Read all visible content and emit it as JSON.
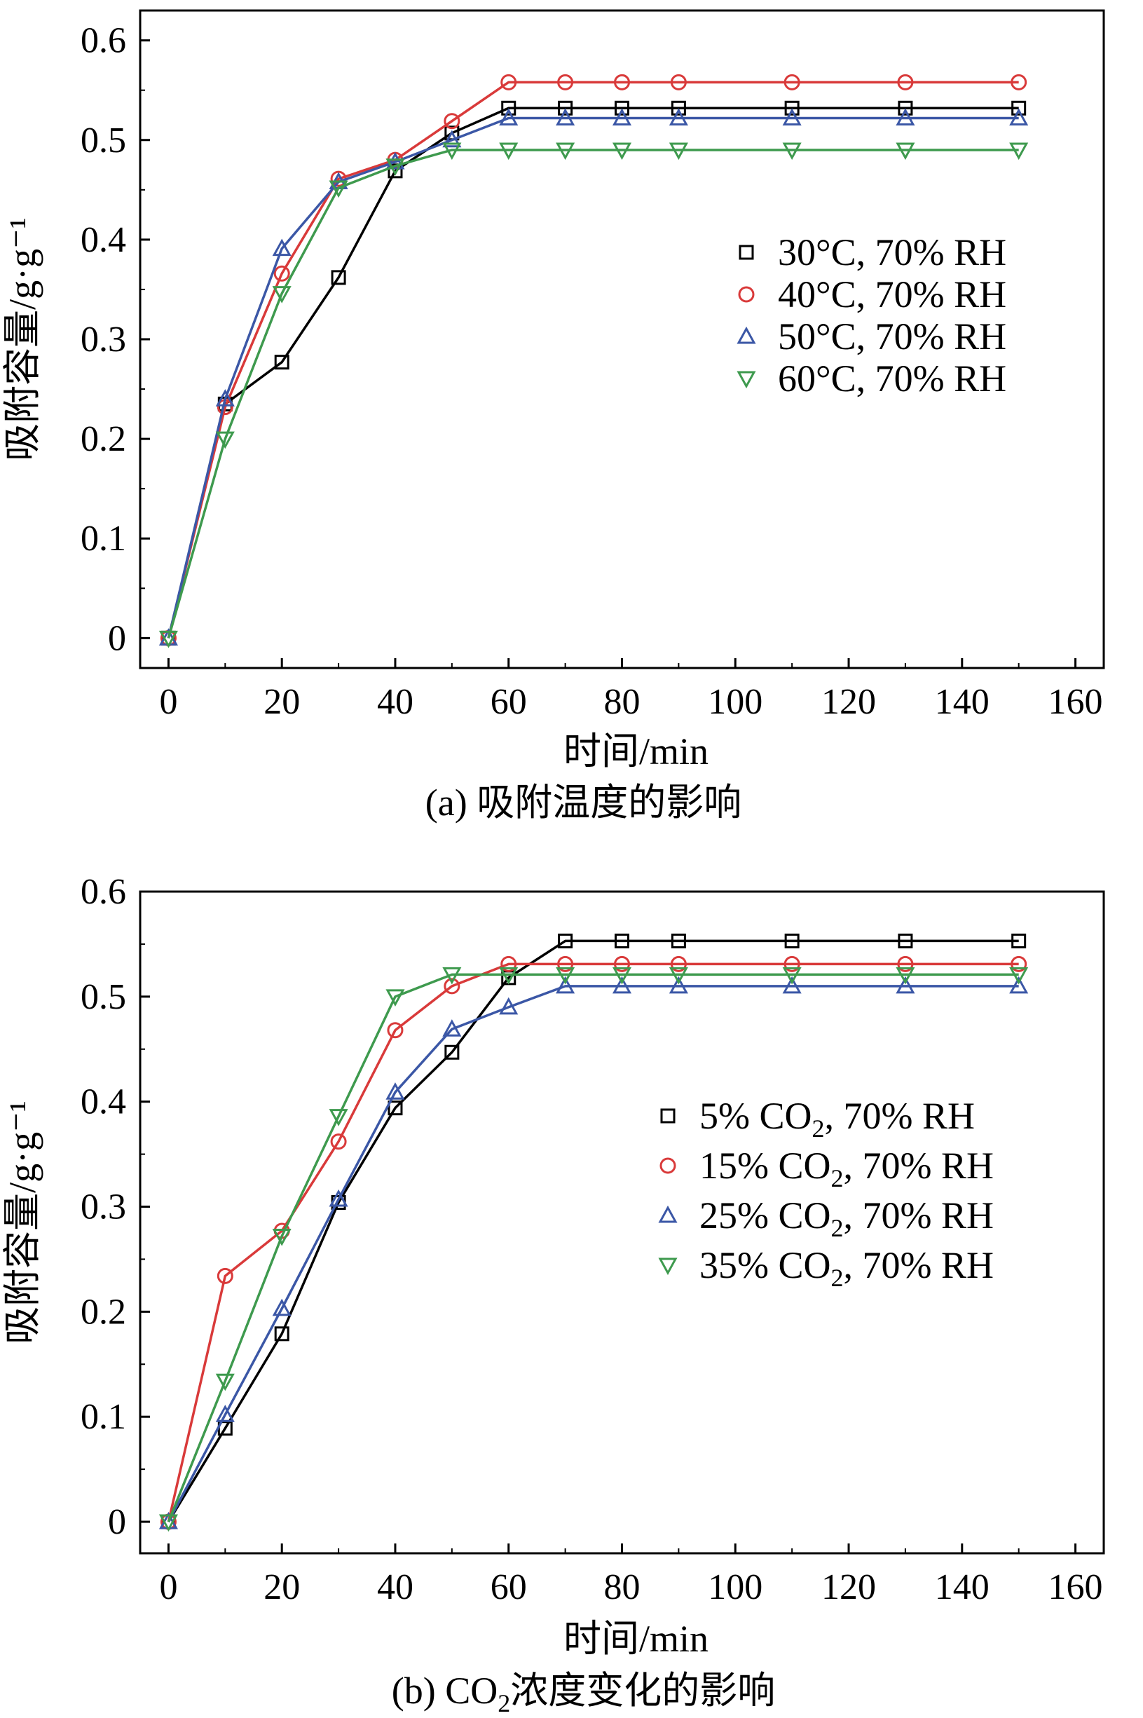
{
  "chart_data": [
    {
      "type": "line",
      "caption": "(a) 吸附温度的影响",
      "xlabel": "时间/min",
      "ylabel": "吸附容量/g·g⁻¹",
      "xlim": [
        -5,
        165
      ],
      "ylim": [
        -0.03,
        0.63
      ],
      "xticks": [
        0,
        20,
        40,
        60,
        80,
        100,
        120,
        140,
        160
      ],
      "yticks": [
        0,
        0.1,
        0.2,
        0.3,
        0.4,
        0.5,
        0.6
      ],
      "xtick_labels": [
        "0",
        "20",
        "40",
        "60",
        "80",
        "100",
        "120",
        "140",
        "160"
      ],
      "ytick_labels": [
        "0",
        "0.1",
        "0.2",
        "0.3",
        "0.4",
        "0.5",
        "0.6"
      ],
      "x": [
        0,
        10,
        20,
        30,
        40,
        50,
        60,
        70,
        80,
        90,
        110,
        130,
        150
      ],
      "legend_position": "right-middle",
      "series": [
        {
          "name": "30°C, 70% RH",
          "marker": "square",
          "color": "#000000",
          "values": [
            0,
            0.235,
            0.277,
            0.362,
            0.469,
            0.507,
            0.532,
            0.532,
            0.532,
            0.532,
            0.532,
            0.532,
            0.532
          ]
        },
        {
          "name": "40°C, 70% RH",
          "marker": "circle",
          "color": "#d93a3a",
          "values": [
            0,
            0.232,
            0.366,
            0.461,
            0.48,
            0.519,
            0.558,
            0.558,
            0.558,
            0.558,
            0.558,
            0.558,
            0.558
          ]
        },
        {
          "name": "50°C, 70% RH",
          "marker": "triangle-up",
          "color": "#3b57a6",
          "values": [
            0,
            0.24,
            0.391,
            0.458,
            0.478,
            0.5,
            0.522,
            0.522,
            0.522,
            0.522,
            0.522,
            0.522,
            0.522
          ]
        },
        {
          "name": "60°C, 70% RH",
          "marker": "triangle-down",
          "color": "#3e9a4e",
          "values": [
            0,
            0.2,
            0.346,
            0.452,
            0.474,
            0.49,
            0.49,
            0.49,
            0.49,
            0.49,
            0.49,
            0.49,
            0.49
          ]
        }
      ]
    },
    {
      "type": "line",
      "caption_parts": [
        "(b) CO",
        "2",
        "浓度变化的影响"
      ],
      "xlabel": "时间/min",
      "ylabel": "吸附容量/g·g⁻¹",
      "xlim": [
        -5,
        165
      ],
      "ylim": [
        -0.03,
        0.6
      ],
      "xticks": [
        0,
        20,
        40,
        60,
        80,
        100,
        120,
        140,
        160
      ],
      "yticks": [
        0,
        0.1,
        0.2,
        0.3,
        0.4,
        0.5,
        0.6
      ],
      "xtick_labels": [
        "0",
        "20",
        "40",
        "60",
        "80",
        "100",
        "120",
        "140",
        "160"
      ],
      "ytick_labels": [
        "0",
        "0.1",
        "0.2",
        "0.3",
        "0.4",
        "0.5",
        "0.6"
      ],
      "x": [
        0,
        10,
        20,
        30,
        40,
        50,
        60,
        70,
        80,
        90,
        110,
        130,
        150
      ],
      "legend_position": "right-middle",
      "series": [
        {
          "name": "5% CO2, 70% RH",
          "name_parts": [
            "5% CO",
            "2",
            ", 70% RH"
          ],
          "marker": "square",
          "color": "#000000",
          "values": [
            0,
            0.089,
            0.179,
            0.304,
            0.394,
            0.447,
            0.518,
            0.553,
            0.553,
            0.553,
            0.553,
            0.553,
            0.553
          ]
        },
        {
          "name": "15% CO2, 70% RH",
          "name_parts": [
            "15% CO",
            "2",
            ", 70% RH"
          ],
          "marker": "circle",
          "color": "#d93a3a",
          "values": [
            0,
            0.234,
            0.277,
            0.362,
            0.468,
            0.51,
            0.531,
            0.531,
            0.531,
            0.531,
            0.531,
            0.531,
            0.531
          ]
        },
        {
          "name": "25% CO2, 70% RH",
          "name_parts": [
            "25% CO",
            "2",
            ", 70% RH"
          ],
          "marker": "triangle-up",
          "color": "#3b57a6",
          "values": [
            0,
            0.102,
            0.203,
            0.307,
            0.409,
            0.469,
            0.49,
            0.51,
            0.51,
            0.51,
            0.51,
            0.51,
            0.51
          ]
        },
        {
          "name": "35% CO2, 70% RH",
          "name_parts": [
            "35% CO",
            "2",
            ", 70% RH"
          ],
          "marker": "triangle-down",
          "color": "#3e9a4e",
          "values": [
            0,
            0.134,
            0.272,
            0.386,
            0.5,
            0.521,
            0.521,
            0.521,
            0.521,
            0.521,
            0.521,
            0.521,
            0.521
          ]
        }
      ]
    }
  ]
}
